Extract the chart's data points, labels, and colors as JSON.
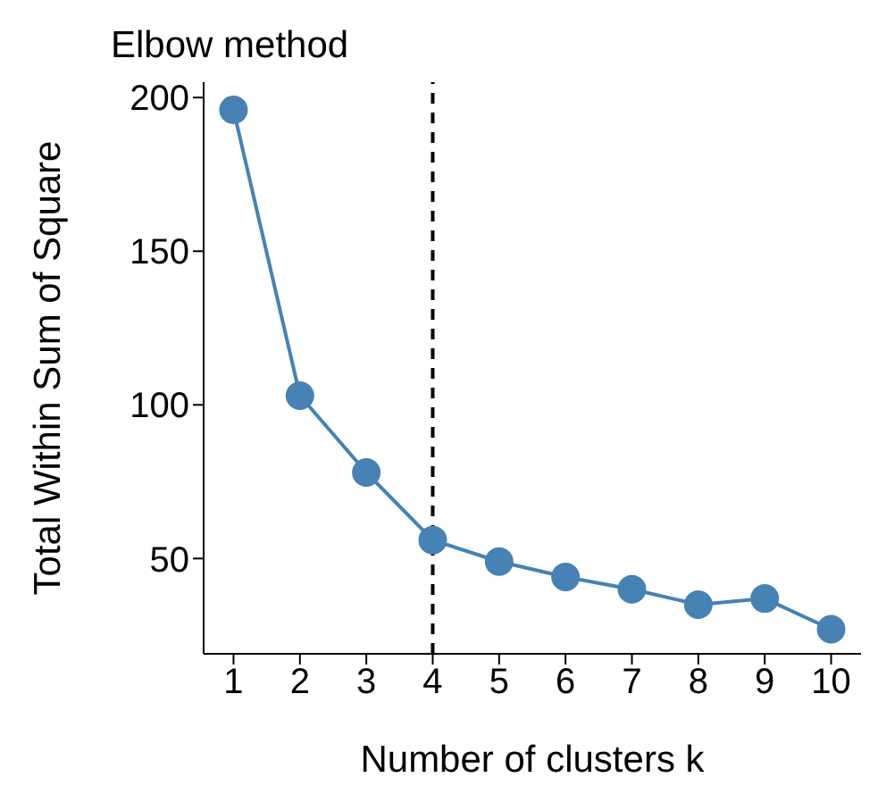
{
  "chart_data": {
    "type": "line",
    "title": "Elbow method",
    "xlabel": "Number of clusters k",
    "ylabel": "Total Within Sum of Square",
    "x": [
      1,
      2,
      3,
      4,
      5,
      6,
      7,
      8,
      9,
      10
    ],
    "series": [
      {
        "color": "#4682b4",
        "values": [
          196,
          103,
          78,
          56,
          49,
          44,
          40,
          35,
          37,
          27
        ]
      }
    ],
    "xlim": [
      0.55,
      10.45
    ],
    "xticks": [
      1,
      2,
      3,
      4,
      5,
      6,
      7,
      8,
      9,
      10
    ],
    "ylim": [
      19,
      205
    ],
    "yticks": [
      50,
      100,
      150,
      200
    ],
    "ref_lines": [
      {
        "axis": "x",
        "value": 4,
        "line_style": "dashed",
        "color": "#000000"
      }
    ],
    "grid": false,
    "legend": false,
    "marker": "circle",
    "line_style": "solid"
  }
}
